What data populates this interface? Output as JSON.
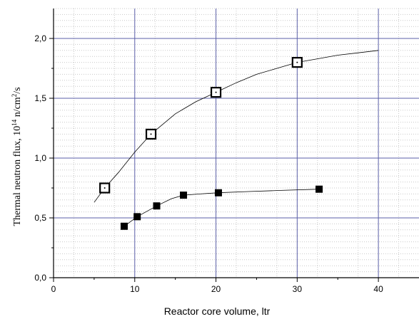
{
  "chart_data": {
    "type": "scatter",
    "title": "",
    "xlabel": "Reactor core volume, ltr",
    "ylabel_parts": {
      "prefix": "Thermal neutron flux, 10",
      "exp1": "14",
      "mid": " n/cm",
      "exp2": "2",
      "suffix": "/s"
    },
    "xlim": [
      0,
      45
    ],
    "ylim": [
      0,
      2.25
    ],
    "x_ticks": [
      {
        "value": 0,
        "label": "0"
      },
      {
        "value": 10,
        "label": "10"
      },
      {
        "value": 20,
        "label": "20"
      },
      {
        "value": 30,
        "label": "30"
      },
      {
        "value": 40,
        "label": "40"
      }
    ],
    "y_ticks": [
      {
        "value": 0.0,
        "label": "0,0"
      },
      {
        "value": 0.5,
        "label": "0,5"
      },
      {
        "value": 1.0,
        "label": "1,0"
      },
      {
        "value": 1.5,
        "label": "1,5"
      },
      {
        "value": 2.0,
        "label": "2,0"
      }
    ],
    "grid": true,
    "series": [
      {
        "marker": "open-square",
        "color": "#000000",
        "points": [
          [
            6.3,
            0.75
          ],
          [
            12.0,
            1.2
          ],
          [
            20.0,
            1.55
          ],
          [
            30.0,
            1.8
          ]
        ],
        "fit_curve": [
          [
            5.0,
            0.63
          ],
          [
            6.3,
            0.75
          ],
          [
            8.0,
            0.88
          ],
          [
            10.0,
            1.05
          ],
          [
            12.0,
            1.2
          ],
          [
            15.0,
            1.37
          ],
          [
            17.5,
            1.47
          ],
          [
            20.0,
            1.55
          ],
          [
            22.5,
            1.63
          ],
          [
            25.0,
            1.7
          ],
          [
            27.5,
            1.75
          ],
          [
            30.0,
            1.8
          ],
          [
            32.5,
            1.83
          ],
          [
            35.0,
            1.86
          ],
          [
            37.5,
            1.88
          ],
          [
            40.0,
            1.9
          ]
        ]
      },
      {
        "marker": "filled-square",
        "color": "#000000",
        "points": [
          [
            8.7,
            0.43
          ],
          [
            10.3,
            0.51
          ],
          [
            12.7,
            0.6
          ],
          [
            16.0,
            0.69
          ],
          [
            20.3,
            0.71
          ],
          [
            32.7,
            0.74
          ]
        ],
        "fit_curve": [
          [
            8.7,
            0.43
          ],
          [
            10.3,
            0.51
          ],
          [
            12.7,
            0.6
          ],
          [
            14.5,
            0.66
          ],
          [
            16.0,
            0.69
          ],
          [
            18.0,
            0.7
          ],
          [
            20.3,
            0.71
          ],
          [
            24.0,
            0.72
          ],
          [
            28.0,
            0.73
          ],
          [
            32.7,
            0.74
          ]
        ]
      }
    ],
    "colors": {
      "major_grid": "#5b5fa8",
      "minor_grid": "#c9c9c9",
      "axis": "#000000"
    }
  }
}
